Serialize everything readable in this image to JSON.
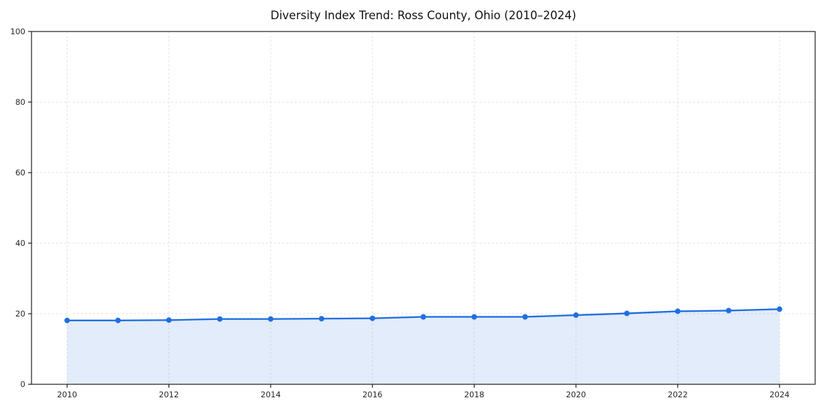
{
  "chart_data": {
    "type": "area",
    "title": "Diversity Index Trend: Ross County, Ohio (2010–2024)",
    "x": [
      2010,
      2011,
      2012,
      2013,
      2014,
      2015,
      2016,
      2017,
      2018,
      2019,
      2020,
      2021,
      2022,
      2023,
      2024
    ],
    "series": [
      {
        "name": "Diversity Index",
        "values": [
          18.1,
          18.1,
          18.2,
          18.5,
          18.5,
          18.6,
          18.7,
          19.1,
          19.1,
          19.1,
          19.6,
          20.1,
          20.7,
          20.9,
          21.3
        ]
      }
    ],
    "xlabel": "",
    "ylabel": "",
    "xlim": [
      2009.3,
      2024.7
    ],
    "ylim": [
      0,
      100
    ],
    "x_tick_values": [
      2010,
      2012,
      2014,
      2016,
      2018,
      2020,
      2022,
      2024
    ],
    "y_tick_values": [
      0,
      20,
      40,
      60,
      80,
      100
    ],
    "grid": true,
    "grid_style": "dashed",
    "legend_position": "none",
    "colors": {
      "line": "#1f6fe2",
      "fill": "rgba(31, 111, 226, 0.13)",
      "grid": "#e2e2e2",
      "spine": "#1c1c1c",
      "tick_text": "#262626",
      "background": "#ffffff"
    }
  }
}
